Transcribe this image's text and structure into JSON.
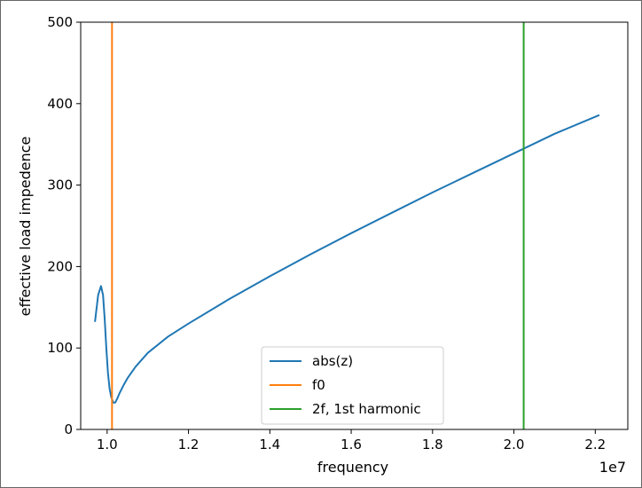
{
  "chart_data": {
    "type": "line",
    "xlabel": "frequency",
    "ylabel": "effective load impedence",
    "x_offset_label": "1e7",
    "xlim": [
      0.935,
      2.28
    ],
    "ylim": [
      0,
      500
    ],
    "x_ticks": [
      1.0,
      1.2,
      1.4,
      1.6,
      1.8,
      2.0,
      2.2
    ],
    "x_tick_labels": [
      "1.0",
      "1.2",
      "1.4",
      "1.6",
      "1.8",
      "2.0",
      "2.2"
    ],
    "y_ticks": [
      0,
      100,
      200,
      300,
      400,
      500
    ],
    "y_tick_labels": [
      "0",
      "100",
      "200",
      "300",
      "400",
      "500"
    ],
    "grid": false,
    "legend_position": "lower center",
    "series": [
      {
        "name": "abs(z)",
        "kind": "curve",
        "color": "#1f77b4",
        "x": [
          0.97,
          0.978,
          0.985,
          0.99,
          0.994,
          0.998,
          1.002,
          1.006,
          1.01,
          1.015,
          1.02,
          1.025,
          1.03,
          1.04,
          1.05,
          1.07,
          1.1,
          1.15,
          1.2,
          1.3,
          1.4,
          1.5,
          1.6,
          1.7,
          1.8,
          1.9,
          2.0,
          2.1,
          2.21
        ],
        "y": [
          132,
          165,
          176,
          165,
          135,
          100,
          70,
          50,
          40,
          33,
          33,
          38,
          44,
          54,
          63,
          77,
          94,
          114,
          130,
          160,
          188,
          215,
          241,
          266,
          291,
          315,
          339,
          363,
          386
        ]
      },
      {
        "name": "f0",
        "kind": "vline",
        "color": "#ff7f0e",
        "x": 1.012
      },
      {
        "name": "2f, 1st harmonic",
        "kind": "vline",
        "color": "#2ca02c",
        "x": 2.024
      }
    ]
  }
}
